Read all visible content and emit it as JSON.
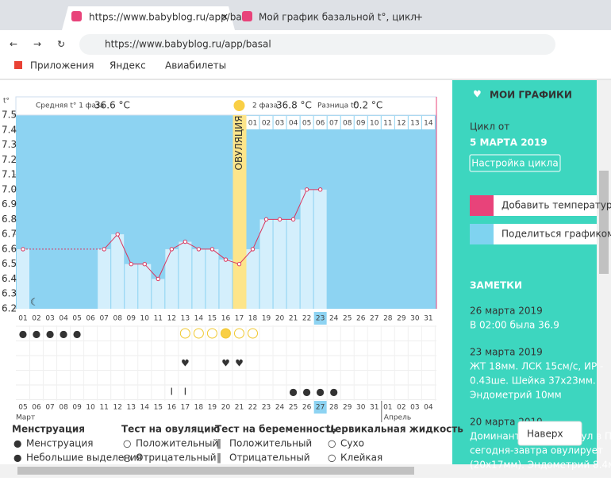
{
  "browser": {
    "tabs": [
      "https://www.babyblog.ru/app/bas",
      "Мой график базальной t°, цикл"
    ],
    "url": "https://www.babyblog.ru/app/basal",
    "bookmarks": [
      "Приложения",
      "Яндекс",
      "Авиабилеты"
    ]
  },
  "chart_data": {
    "type": "line",
    "y_label": "t°",
    "phase1_label": "Средняя t° 1 фаза",
    "phase1_value": "36.6 °C",
    "phase2_label": "2 фаза",
    "phase2_value": "36.8 °C",
    "diff_label": "Разница t°",
    "diff_value": "0.2 °C",
    "ovulation_label": "ОВУЛЯЦИЯ",
    "x": [
      "01",
      "02",
      "03",
      "04",
      "05",
      "06",
      "07",
      "08",
      "09",
      "10",
      "11",
      "12",
      "13",
      "14",
      "15",
      "16",
      "17",
      "18",
      "19",
      "20",
      "21",
      "22",
      "23",
      "24",
      "25",
      "26",
      "27",
      "28",
      "29",
      "30",
      "31"
    ],
    "phase2_days": [
      "01",
      "02",
      "03",
      "04",
      "05",
      "06",
      "07",
      "08",
      "09",
      "10",
      "11",
      "12",
      "13",
      "14"
    ],
    "series": [
      {
        "color": "#d9365e",
        "values": [
          6.6,
          null,
          null,
          null,
          null,
          null,
          6.6,
          6.7,
          6.5,
          6.5,
          6.4,
          6.6,
          6.65,
          6.6,
          6.6,
          6.53,
          6.5,
          6.6,
          6.8,
          6.8,
          6.8,
          7.0,
          7.0,
          null,
          null,
          null,
          null,
          null,
          null,
          null,
          null
        ]
      }
    ],
    "ylim": [
      6.2,
      7.5
    ],
    "yticks": [
      6.2,
      6.3,
      6.4,
      6.5,
      6.6,
      6.7,
      6.8,
      6.9,
      {
        "value": 7,
        "label": "7.0"
      },
      7.1,
      7.2,
      7.3,
      7.4,
      7.5
    ],
    "dates": [
      "05",
      "06",
      "07",
      "08",
      "09",
      "10",
      "11",
      "12",
      "13",
      "14",
      "15",
      "16",
      "17",
      "18",
      "19",
      "20",
      "21",
      "22",
      "23",
      "24",
      "25",
      "26",
      "27",
      "28",
      "29",
      "30",
      "31",
      "01",
      "02",
      "03",
      "04"
    ],
    "months": [
      "Март",
      "Апрель"
    ]
  },
  "legend": {
    "groups": [
      {
        "title": "Менструация",
        "items": [
          "Менструация",
          "Небольшие выделения"
        ]
      },
      {
        "title": "Тест на овуляцию",
        "items": [
          "Положительный",
          "Отрицательный"
        ]
      },
      {
        "title": "Тест на беременность",
        "items": [
          "Положительный",
          "Отрицательный"
        ]
      },
      {
        "title": "Цервикальная жидкость",
        "items": [
          "Сухо",
          "Клейкая"
        ]
      }
    ]
  },
  "sidebar": {
    "my_charts": "МОИ ГРАФИКИ",
    "cycle_from": "Цикл от",
    "cycle_date": "5 МАРТА 2019",
    "cycle_settings": "Настройка цикла",
    "add_temp": "Добавить температур",
    "share": "Поделиться графиком",
    "notes_title": "ЗАМЕТКИ",
    "notes": [
      {
        "date": "26 марта 2019",
        "lines": [
          "В 02:00 была 36.9"
        ]
      },
      {
        "date": "23 марта 2019",
        "lines": [
          "ЖТ 18мм. ЛСК 15см/с, ИР -",
          "0.43ше. Шейка 37х23мм.",
          "Эндометрий 10мм"
        ]
      },
      {
        "date": "20 марта 2019",
        "lines": [
          "Доминантный фолликул в ПЯ",
          "сегодня-завтра овулирует",
          "(20х17мм). Эндометрий 8.4м"
        ]
      }
    ],
    "to_top": "Наверх"
  }
}
